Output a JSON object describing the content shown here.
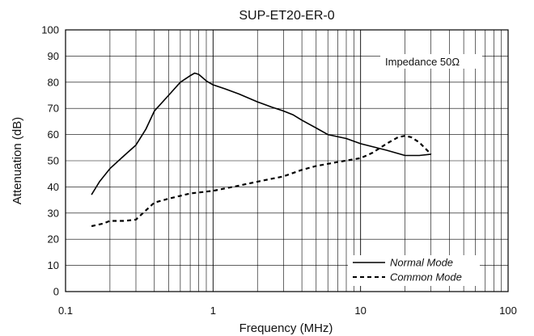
{
  "chart_data": {
    "type": "line",
    "title": "SUP-ET20-ER-0",
    "xlabel": "Frequency (MHz)",
    "ylabel": "Attenuation (dB)",
    "x_scale": "log",
    "xlim": [
      0.1,
      100
    ],
    "ylim": [
      0,
      100
    ],
    "x_ticks": [
      0.1,
      1,
      10,
      100
    ],
    "x_tick_labels": [
      "0.1",
      "1",
      "10",
      "100"
    ],
    "y_ticks": [
      0,
      10,
      20,
      30,
      40,
      50,
      60,
      70,
      80,
      90,
      100
    ],
    "y_tick_labels": [
      "0",
      "10",
      "20",
      "30",
      "40",
      "50",
      "60",
      "70",
      "80",
      "90",
      "100"
    ],
    "grid": true,
    "legend_position": "bottom-right",
    "annotation": "Impedance 50Ω",
    "series": [
      {
        "name": "Normal Mode",
        "line_style": "solid",
        "color": "#000000",
        "x": [
          0.15,
          0.17,
          0.2,
          0.25,
          0.3,
          0.35,
          0.4,
          0.5,
          0.6,
          0.7,
          0.75,
          0.8,
          0.9,
          1.0,
          1.2,
          1.5,
          2.0,
          2.5,
          3.0,
          3.5,
          4.0,
          5.0,
          6.0,
          8.0,
          10,
          15,
          20,
          25,
          30
        ],
        "y": [
          37,
          42,
          47,
          52,
          56,
          62,
          69,
          75,
          80,
          82.5,
          83.5,
          83,
          80.5,
          79,
          77.5,
          75.5,
          72.5,
          70.5,
          69,
          67.5,
          65.5,
          62.5,
          60,
          58.5,
          56.5,
          54,
          52,
          52,
          52.5
        ]
      },
      {
        "name": "Common Mode",
        "line_style": "dashed",
        "color": "#000000",
        "x": [
          0.15,
          0.18,
          0.2,
          0.25,
          0.3,
          0.35,
          0.4,
          0.5,
          0.7,
          1.0,
          1.5,
          2.0,
          3.0,
          4.0,
          5.0,
          7.0,
          10,
          12,
          15,
          18,
          20,
          22,
          25,
          30
        ],
        "y": [
          25,
          26,
          27,
          27,
          27.5,
          31,
          34,
          35.5,
          37.5,
          38.5,
          40.5,
          42,
          44,
          46.5,
          48,
          49.5,
          51,
          53,
          56.5,
          59,
          59.5,
          59,
          57,
          52.5
        ]
      }
    ]
  }
}
